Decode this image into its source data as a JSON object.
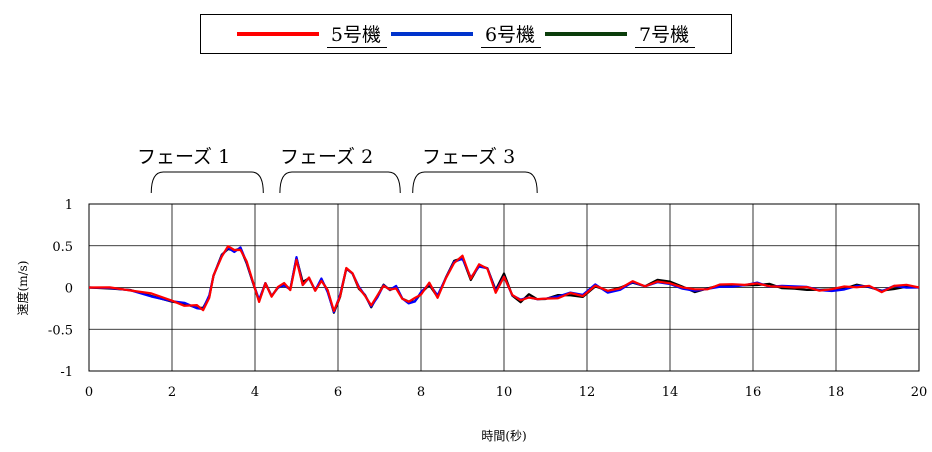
{
  "chart_data": {
    "type": "line",
    "title": "",
    "xlabel": "時間(秒)",
    "ylabel": "速度(m/s)",
    "xlim": [
      0,
      20
    ],
    "ylim": [
      -1,
      1
    ],
    "xticks": [
      0,
      2,
      4,
      6,
      8,
      10,
      12,
      14,
      16,
      18,
      20
    ],
    "xtick_labels": [
      "0",
      "2",
      "4",
      "6",
      "8",
      "10",
      "12",
      "14",
      "16",
      "18",
      "20"
    ],
    "yticks": [
      1,
      0.5,
      0,
      -0.5,
      -1
    ],
    "ytick_labels": [
      "1",
      "0.5",
      "0",
      "-0.5",
      "-1"
    ],
    "grid": true,
    "legend_position": "top-center",
    "legend": [
      "5号機",
      "6号機",
      "7号機"
    ],
    "annotations": [
      {
        "text": "フェーズ 1",
        "x_range": [
          1.5,
          4.2
        ]
      },
      {
        "text": "フェーズ 2",
        "x_range": [
          4.6,
          7.5
        ]
      },
      {
        "text": "フェーズ 3",
        "x_range": [
          7.8,
          10.8
        ]
      }
    ],
    "series": [
      {
        "name": "5号機",
        "color": "#ff0000",
        "offset": 0.0,
        "jitter": 0.025
      },
      {
        "name": "6号機",
        "color": "#0000ff",
        "offset": 0.0,
        "jitter": 0.02
      },
      {
        "name": "7号機",
        "color": "#000000",
        "offset": 0.0,
        "jitter": 0.02
      }
    ],
    "x": [
      0,
      0.5,
      1.0,
      1.5,
      2.0,
      2.3,
      2.6,
      2.75,
      2.9,
      3.0,
      3.2,
      3.35,
      3.5,
      3.65,
      3.8,
      3.95,
      4.1,
      4.25,
      4.4,
      4.55,
      4.7,
      4.85,
      5.0,
      5.15,
      5.3,
      5.45,
      5.6,
      5.75,
      5.9,
      6.05,
      6.2,
      6.35,
      6.5,
      6.65,
      6.8,
      6.95,
      7.1,
      7.25,
      7.4,
      7.55,
      7.7,
      7.85,
      8.0,
      8.2,
      8.4,
      8.6,
      8.8,
      9.0,
      9.2,
      9.4,
      9.6,
      9.8,
      10.0,
      10.2,
      10.4,
      10.6,
      10.8,
      11.0,
      11.3,
      11.6,
      11.9,
      12.2,
      12.5,
      12.8,
      13.1,
      13.4,
      13.7,
      14.0,
      14.3,
      14.6,
      14.9,
      15.2,
      15.5,
      15.8,
      16.1,
      16.4,
      16.7,
      17.0,
      17.3,
      17.6,
      17.9,
      18.2,
      18.5,
      18.8,
      19.1,
      19.4,
      19.7,
      20.0
    ],
    "values": [
      0.0,
      -0.01,
      -0.04,
      -0.09,
      -0.16,
      -0.2,
      -0.23,
      -0.26,
      -0.1,
      0.15,
      0.38,
      0.48,
      0.43,
      0.47,
      0.3,
      0.06,
      -0.15,
      0.06,
      -0.1,
      0.0,
      0.03,
      -0.01,
      0.35,
      0.05,
      0.12,
      -0.02,
      0.1,
      -0.05,
      -0.3,
      -0.1,
      0.22,
      0.15,
      0.0,
      -0.1,
      -0.22,
      -0.1,
      0.02,
      -0.02,
      0.0,
      -0.12,
      -0.18,
      -0.15,
      -0.06,
      0.04,
      -0.1,
      0.12,
      0.3,
      0.36,
      0.1,
      0.27,
      0.25,
      -0.05,
      0.15,
      -0.1,
      -0.16,
      -0.1,
      -0.14,
      -0.12,
      -0.11,
      -0.08,
      -0.1,
      0.02,
      -0.06,
      -0.02,
      0.06,
      0.02,
      0.08,
      0.06,
      0.0,
      -0.04,
      -0.02,
      0.02,
      0.03,
      0.02,
      0.04,
      0.03,
      0.01,
      0.0,
      -0.01,
      -0.02,
      -0.03,
      -0.01,
      0.02,
      0.01,
      -0.03,
      0.0,
      0.01,
      0.0
    ]
  }
}
